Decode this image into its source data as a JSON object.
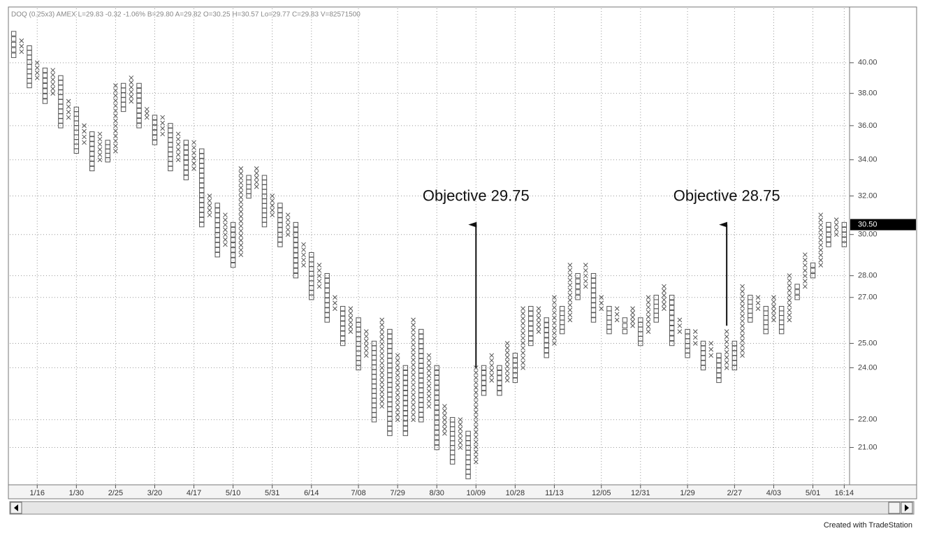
{
  "chart_data": {
    "type": "point-and-figure",
    "title": "DOQ (0.25x3)  AMEX  L=29.83  -0.32  -1.06%  B=29.80  A=29.82  O=30.25  H=30.57  Lo=29.77  C=29.83  V=82571500",
    "footer": "Created with TradeStation",
    "log_scale": true,
    "grid": true,
    "ylim": [
      19.75,
      42.5
    ],
    "yticks": [
      {
        "value": 40,
        "label": "40.00"
      },
      {
        "value": 38,
        "label": "38.00"
      },
      {
        "value": 36,
        "label": "36.00"
      },
      {
        "value": 34,
        "label": "34.00"
      },
      {
        "value": 32,
        "label": "32.00"
      },
      {
        "value": 30,
        "label": "30.00"
      },
      {
        "value": 28,
        "label": "28.00"
      },
      {
        "value": 27,
        "label": "27.00"
      },
      {
        "value": 25,
        "label": "25.00"
      },
      {
        "value": 24,
        "label": "24.00"
      },
      {
        "value": 22,
        "label": "22.00"
      },
      {
        "value": 21,
        "label": "21.00"
      }
    ],
    "last_value": {
      "value": 30.5,
      "label": "30.50"
    },
    "xticks": [
      {
        "value": 3,
        "label": "1/16"
      },
      {
        "value": 8,
        "label": "1/30"
      },
      {
        "value": 13,
        "label": "2/25"
      },
      {
        "value": 18,
        "label": "3/20"
      },
      {
        "value": 23,
        "label": "4/17"
      },
      {
        "value": 28,
        "label": "5/10"
      },
      {
        "value": 33,
        "label": "5/31"
      },
      {
        "value": 38,
        "label": "6/14"
      },
      {
        "value": 44,
        "label": "7/08"
      },
      {
        "value": 49,
        "label": "7/29"
      },
      {
        "value": 54,
        "label": "8/30"
      },
      {
        "value": 59,
        "label": "10/09"
      },
      {
        "value": 64,
        "label": "10/28"
      },
      {
        "value": 69,
        "label": "11/13"
      },
      {
        "value": 75,
        "label": "12/05"
      },
      {
        "value": 80,
        "label": "12/31"
      },
      {
        "value": 86,
        "label": "1/29"
      },
      {
        "value": 92,
        "label": "2/27"
      },
      {
        "value": 97,
        "label": "4/03"
      },
      {
        "value": 102,
        "label": "5/01"
      },
      {
        "value": 106,
        "label": "16:14"
      }
    ],
    "annotations": [
      {
        "text": "Objective 29.75",
        "column": 59,
        "from": 24,
        "to": 30.5
      },
      {
        "text": "Objective 28.75",
        "column": 91,
        "from": 25.75,
        "to": 30.5
      }
    ],
    "columns": [
      [
        "O",
        40.5,
        42
      ],
      [
        "X",
        40.75,
        41.5
      ],
      [
        "O",
        38.5,
        41
      ],
      [
        "X",
        39,
        40
      ],
      [
        "O",
        37.5,
        39.5
      ],
      [
        "X",
        38,
        39.5
      ],
      [
        "O",
        36,
        39
      ],
      [
        "X",
        36.5,
        37.5
      ],
      [
        "O",
        34.5,
        37
      ],
      [
        "X",
        35,
        36
      ],
      [
        "O",
        33.5,
        35.5
      ],
      [
        "X",
        34,
        35.5
      ],
      [
        "O",
        34,
        35
      ],
      [
        "X",
        34.5,
        38.5
      ],
      [
        "O",
        37,
        38.5
      ],
      [
        "X",
        37.5,
        39
      ],
      [
        "O",
        36,
        38.5
      ],
      [
        "X",
        36.5,
        37
      ],
      [
        "O",
        35,
        36.5
      ],
      [
        "X",
        35.5,
        36.5
      ],
      [
        "O",
        33.5,
        36
      ],
      [
        "X",
        34,
        35.5
      ],
      [
        "O",
        33,
        35
      ],
      [
        "X",
        33.5,
        35
      ],
      [
        "O",
        30.5,
        34.5
      ],
      [
        "X",
        31,
        32
      ],
      [
        "O",
        29,
        31.5
      ],
      [
        "X",
        29.5,
        31
      ],
      [
        "O",
        28.5,
        30.5
      ],
      [
        "X",
        29,
        33.5
      ],
      [
        "O",
        32,
        33
      ],
      [
        "X",
        32.5,
        33.5
      ],
      [
        "O",
        30.5,
        33
      ],
      [
        "X",
        31,
        32
      ],
      [
        "O",
        29.5,
        31.5
      ],
      [
        "X",
        30,
        31
      ],
      [
        "O",
        28,
        30.5
      ],
      [
        "X",
        28.5,
        29.5
      ],
      [
        "O",
        27,
        29
      ],
      [
        "X",
        27.5,
        28.5
      ],
      [
        "O",
        26,
        28
      ],
      [
        "X",
        26.5,
        27
      ],
      [
        "O",
        25,
        26.5
      ],
      [
        "X",
        25.5,
        26.5
      ],
      [
        "O",
        24,
        26
      ],
      [
        "X",
        24.5,
        25.5
      ],
      [
        "O",
        22,
        25
      ],
      [
        "X",
        22.5,
        26
      ],
      [
        "O",
        21.5,
        25.5
      ],
      [
        "X",
        22,
        24.5
      ],
      [
        "O",
        21.5,
        24
      ],
      [
        "X",
        22,
        26
      ],
      [
        "O",
        22,
        25.5
      ],
      [
        "X",
        22.5,
        24.5
      ],
      [
        "O",
        21,
        24
      ],
      [
        "X",
        21.5,
        22.5
      ],
      [
        "O",
        20.5,
        22
      ],
      [
        "X",
        21,
        22
      ],
      [
        "O",
        20,
        21.5
      ],
      [
        "X",
        20.5,
        24
      ],
      [
        "O",
        23,
        24
      ],
      [
        "X",
        23.5,
        24.5
      ],
      [
        "O",
        23,
        24
      ],
      [
        "X",
        23.5,
        25
      ],
      [
        "O",
        23.5,
        24.5
      ],
      [
        "X",
        24,
        26.5
      ],
      [
        "O",
        25,
        26.5
      ],
      [
        "X",
        25.5,
        26.5
      ],
      [
        "O",
        24.5,
        26
      ],
      [
        "X",
        25,
        27
      ],
      [
        "O",
        25.5,
        26.5
      ],
      [
        "X",
        26,
        28.5
      ],
      [
        "O",
        27,
        28
      ],
      [
        "X",
        27.5,
        28.5
      ],
      [
        "O",
        26,
        28
      ],
      [
        "X",
        26.5,
        27
      ],
      [
        "O",
        25.5,
        26.5
      ],
      [
        "X",
        26,
        26.5
      ],
      [
        "O",
        25.5,
        26
      ],
      [
        "X",
        25.75,
        26.5
      ],
      [
        "O",
        25,
        26
      ],
      [
        "X",
        25.5,
        27
      ],
      [
        "O",
        26,
        27
      ],
      [
        "X",
        26.5,
        27.5
      ],
      [
        "O",
        25,
        27
      ],
      [
        "X",
        25.5,
        26
      ],
      [
        "O",
        24.5,
        25.5
      ],
      [
        "X",
        25,
        25.5
      ],
      [
        "O",
        24,
        25
      ],
      [
        "X",
        24.5,
        25
      ],
      [
        "O",
        23.5,
        24.5
      ],
      [
        "X",
        24,
        25.5
      ],
      [
        "O",
        24,
        25
      ],
      [
        "X",
        24.5,
        27.5
      ],
      [
        "O",
        26,
        27
      ],
      [
        "X",
        26.5,
        27
      ],
      [
        "O",
        25.5,
        26.5
      ],
      [
        "X",
        26,
        27
      ],
      [
        "O",
        25.5,
        26.5
      ],
      [
        "X",
        26,
        28
      ],
      [
        "O",
        27,
        27.5
      ],
      [
        "X",
        27.5,
        29
      ],
      [
        "O",
        28,
        28.5
      ],
      [
        "X",
        28.5,
        31
      ],
      [
        "O",
        29.5,
        30.5
      ],
      [
        "X",
        30,
        30.75
      ],
      [
        "O",
        29.5,
        30.5
      ]
    ]
  }
}
